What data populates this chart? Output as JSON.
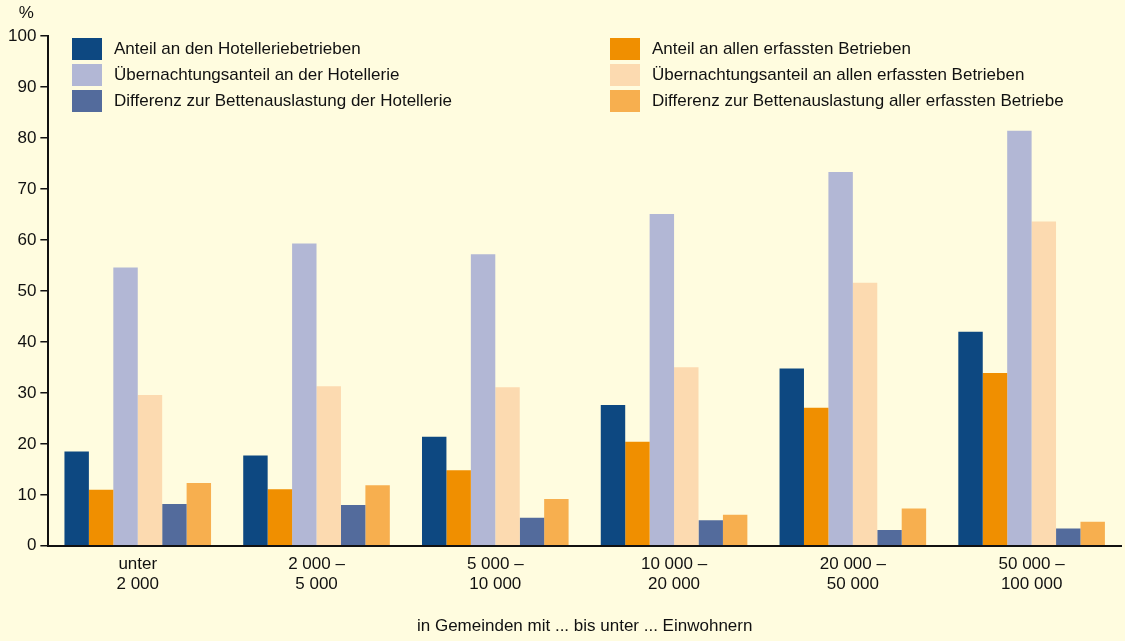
{
  "chart_data": {
    "type": "bar",
    "categories": [
      "unter\n2 000",
      "2 000 –\n5 000",
      "5 000 –\n10 000",
      "10 000 –\n20 000",
      "20 000 –\n50 000",
      "50 000 –\n100 000"
    ],
    "series": [
      {
        "name": "Anteil an den Hotelleriebetrieben",
        "color": "#0d4881",
        "values": [
          18.5,
          17.7,
          21.4,
          27.6,
          34.8,
          42.0
        ]
      },
      {
        "name": "Anteil an allen erfassten Betrieben",
        "color": "#f08f00",
        "values": [
          11.0,
          11.1,
          14.8,
          20.4,
          27.1,
          33.9
        ]
      },
      {
        "name": "Übernachtungsanteil an der Hotellerie",
        "color": "#b2b7d5",
        "values": [
          54.6,
          59.3,
          57.2,
          65.1,
          73.3,
          81.4
        ]
      },
      {
        "name": "Übernachtungsanteil an allen erfassten Betrieben",
        "color": "#fcdab0",
        "values": [
          29.6,
          31.3,
          31.1,
          35.0,
          51.6,
          63.6
        ]
      },
      {
        "name": "Differenz zur Bettenauslastung der Hotellerie",
        "color": "#536b9c",
        "values": [
          8.2,
          8.0,
          5.5,
          5.0,
          3.1,
          3.4
        ]
      },
      {
        "name": "Differenz zur Bettenauslastung aller erfassten Betriebe",
        "color": "#f7af4f",
        "values": [
          12.3,
          11.9,
          9.2,
          6.1,
          7.3,
          4.7
        ]
      }
    ],
    "ylabel": "%",
    "xlabel": "in Gemeinden mit ... bis unter ... Einwohnern",
    "ylim": [
      0,
      100
    ],
    "yticks": [
      0,
      10,
      20,
      30,
      40,
      50,
      60,
      70,
      80,
      90,
      100
    ],
    "grid": false,
    "legend": "top"
  }
}
